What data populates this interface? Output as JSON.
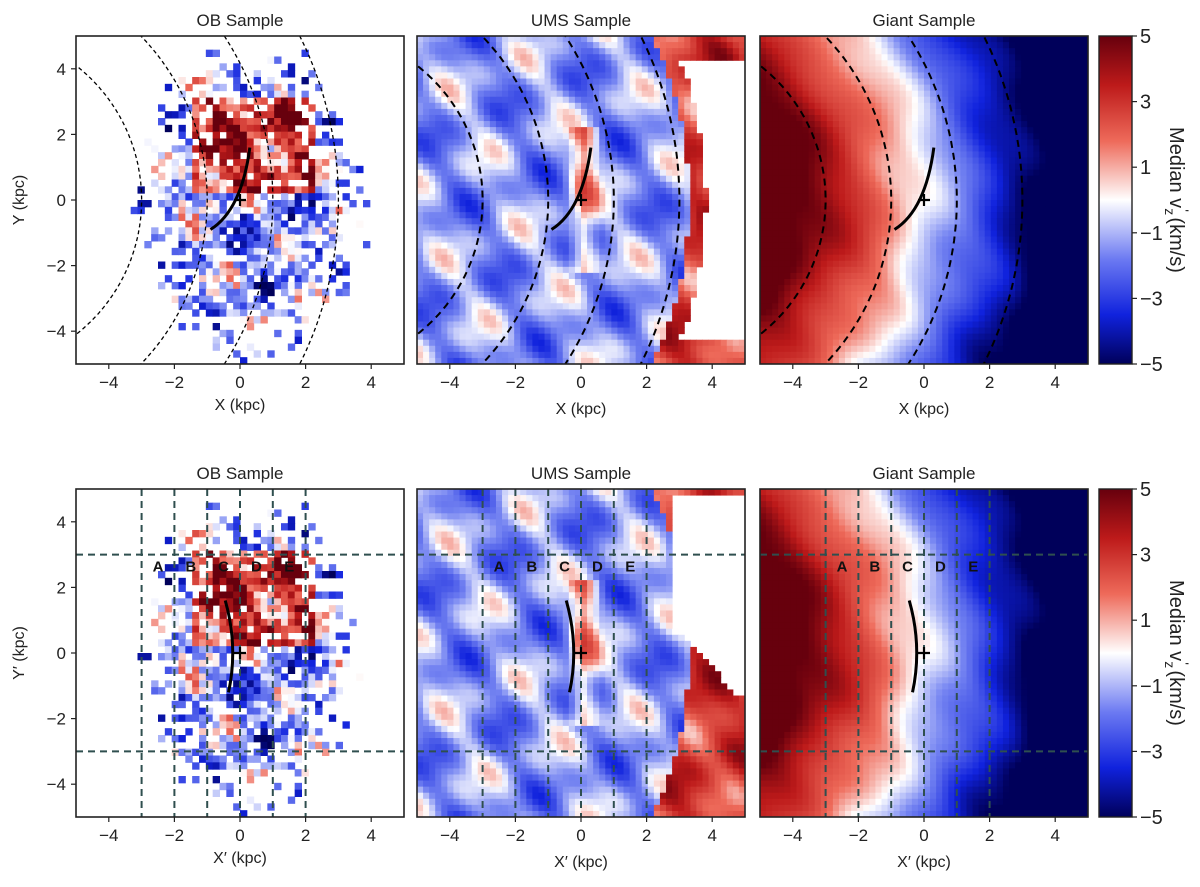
{
  "chart_data": {
    "type": "heatmap",
    "colorbar": {
      "label": "Median v_z' (km/s)",
      "label_main": "Median v",
      "label_sub": "z",
      "label_prime": "'",
      "label_unit": " (km/s)",
      "ticks": [
        "5",
        "3",
        "1",
        "−1",
        "−3",
        "−5"
      ],
      "range": [
        -5,
        5
      ],
      "colormap": "seismic"
    },
    "axis_range": [
      -5,
      5
    ],
    "tick_labels": [
      "−4",
      "−2",
      "0",
      "2",
      "4"
    ],
    "panels": [
      {
        "id": "top-ob",
        "title": "OB Sample",
        "xlabel": "X (kpc)",
        "ylabel": "Y (kpc)",
        "sample": "ob",
        "frame": "XY"
      },
      {
        "id": "top-ums",
        "title": "UMS Sample",
        "xlabel": "X (kpc)",
        "ylabel": "",
        "sample": "ums",
        "frame": "XY"
      },
      {
        "id": "top-giant",
        "title": "Giant Sample",
        "xlabel": "X (kpc)",
        "ylabel": "",
        "sample": "giant",
        "frame": "XY"
      },
      {
        "id": "bot-ob",
        "title": "OB Sample",
        "xlabel": "X′ (kpc)",
        "ylabel": "Y′ (kpc)",
        "sample": "ob",
        "frame": "rotated"
      },
      {
        "id": "bot-ums",
        "title": "UMS Sample",
        "xlabel": "X′ (kpc)",
        "ylabel": "",
        "sample": "ums",
        "frame": "rotated"
      },
      {
        "id": "bot-giant",
        "title": "Giant Sample",
        "xlabel": "X′ (kpc)",
        "ylabel": "",
        "sample": "giant",
        "frame": "rotated"
      }
    ],
    "galactocentric_circles_kpc": [
      11.2,
      9.2,
      7.2,
      5.2
    ],
    "sun_marker": [
      0,
      0
    ],
    "region_lines_x": [
      -3,
      -2,
      -1,
      0,
      1,
      2
    ],
    "region_lines_y": [
      -3,
      3
    ],
    "region_labels": [
      "A",
      "B",
      "C",
      "D",
      "E"
    ],
    "region_label_y": 2.6
  }
}
